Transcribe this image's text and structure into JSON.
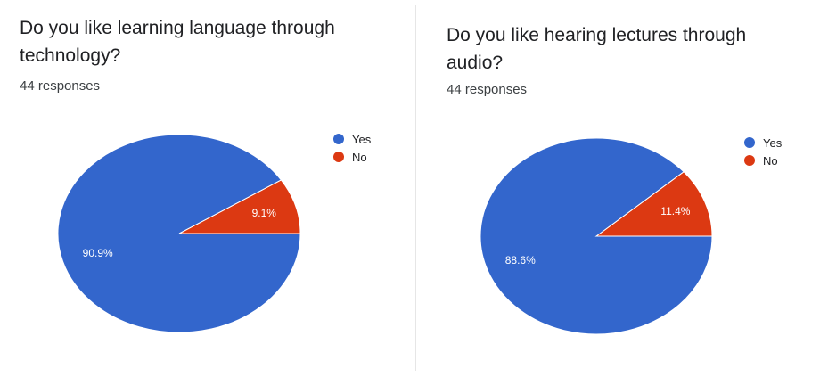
{
  "colors": {
    "yes": "#3366cc",
    "no": "#dc3912"
  },
  "chart_data": [
    {
      "type": "pie",
      "title": "Do you like learning language through technology?",
      "responses": "44 responses",
      "categories": [
        "Yes",
        "No"
      ],
      "values": [
        90.9,
        9.1
      ],
      "labels": [
        "90.9%",
        "9.1%"
      ],
      "legend_position": "right"
    },
    {
      "type": "pie",
      "title": "Do you like hearing lectures through audio?",
      "responses": "44 responses",
      "categories": [
        "Yes",
        "No"
      ],
      "values": [
        88.6,
        11.4
      ],
      "labels": [
        "88.6%",
        "11.4%"
      ],
      "legend_position": "right"
    }
  ]
}
